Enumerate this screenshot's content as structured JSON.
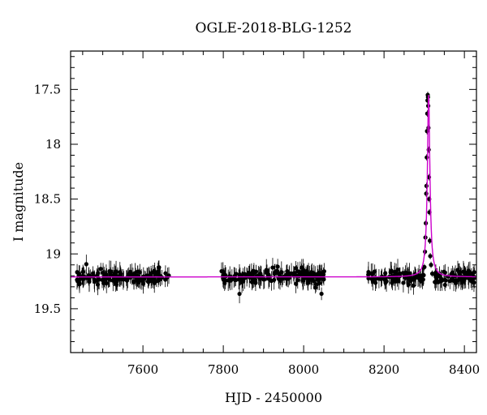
{
  "chart_data": {
    "type": "scatter",
    "title": "OGLE-2018-BLG-1252",
    "xlabel": "HJD - 2450000",
    "ylabel": "I magnitude",
    "xlim": [
      7420,
      8430
    ],
    "ylim": [
      19.9,
      17.15
    ],
    "y_inverted": true,
    "x_ticks": [
      7600,
      7800,
      8000,
      8200,
      8400
    ],
    "y_ticks": [
      17.5,
      18,
      18.5,
      19,
      19.5
    ],
    "x_tick_labels": [
      "7600",
      "7800",
      "8000",
      "8200",
      "8400"
    ],
    "y_tick_labels": [
      "17.5",
      "18",
      "18.5",
      "19",
      "19.5"
    ],
    "grid": false,
    "colors": {
      "points": "#000000",
      "model": "#cc00cc"
    },
    "seasons": [
      {
        "start": 7435,
        "end": 7665
      },
      {
        "start": 7795,
        "end": 8055
      },
      {
        "start": 8160,
        "end": 8425
      }
    ],
    "baseline_mag": 19.21,
    "event": {
      "t0": 8311,
      "peak_mag": 17.55,
      "points": [
        [
          8300.5,
          19.12
        ],
        [
          8302.0,
          18.98
        ],
        [
          8303.0,
          18.85
        ],
        [
          8304.0,
          18.72
        ],
        [
          8305.0,
          18.45
        ],
        [
          8305.6,
          18.38
        ],
        [
          8306.3,
          18.12
        ],
        [
          8307.0,
          17.88
        ],
        [
          8307.6,
          17.72
        ],
        [
          8308.2,
          17.6
        ],
        [
          8308.8,
          17.55
        ],
        [
          8309.4,
          17.57
        ],
        [
          8310.0,
          17.65
        ],
        [
          8310.6,
          17.85
        ],
        [
          8311.2,
          18.05
        ],
        [
          8311.8,
          18.3
        ],
        [
          8312.4,
          18.5
        ],
        [
          8313.0,
          18.62
        ],
        [
          8314.0,
          18.88
        ],
        [
          8315.0,
          19.02
        ],
        [
          8317.0,
          19.1
        ],
        [
          8320.0,
          19.18
        ]
      ]
    }
  }
}
